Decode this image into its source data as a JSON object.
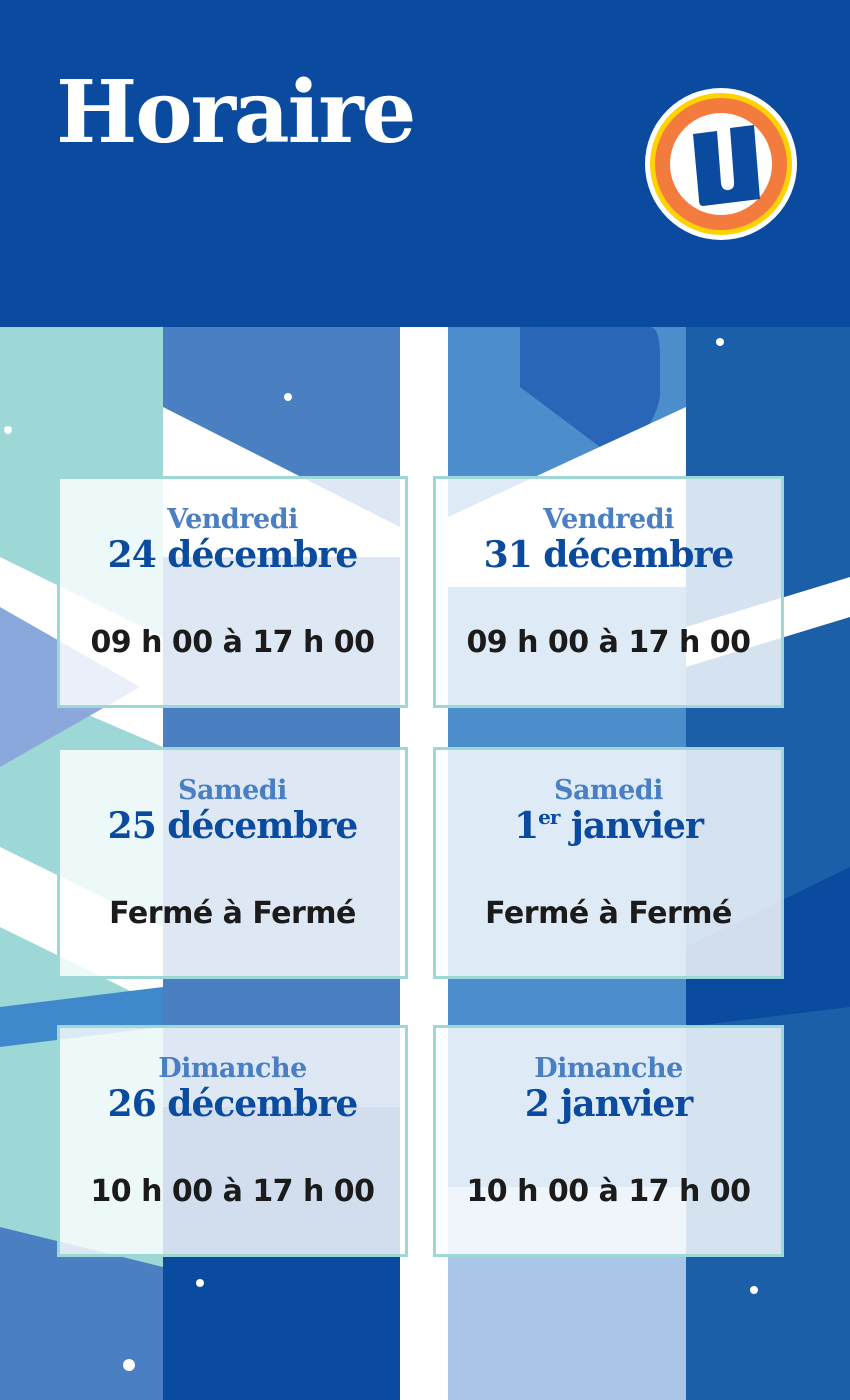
{
  "header": {
    "title": "Horaire",
    "logo": "U"
  },
  "colors": {
    "brand_blue": "#0a4ba0",
    "day_blue": "#4a7fc4",
    "card_border": "#9dd7d6",
    "logo_orange": "#f47b3e",
    "logo_yellow": "#ffd200"
  },
  "schedule": [
    {
      "day": "Vendredi",
      "date": "24 décembre",
      "date_sup": "",
      "hours": "09 h 00 à 17 h 00"
    },
    {
      "day": "Vendredi",
      "date": "31 décembre",
      "date_sup": "",
      "hours": "09 h 00 à 17 h 00"
    },
    {
      "day": "Samedi",
      "date": "25 décembre",
      "date_sup": "",
      "hours": "Fermé à Fermé"
    },
    {
      "day": "Samedi",
      "date_num": "1",
      "date_sup": "er",
      "date": " janvier",
      "hours": "Fermé à Fermé"
    },
    {
      "day": "Dimanche",
      "date": "26 décembre",
      "date_sup": "",
      "hours": "10 h 00 à 17 h 00"
    },
    {
      "day": "Dimanche",
      "date": "2 janvier",
      "date_sup": "",
      "hours": "10 h 00 à 17 h 00"
    }
  ]
}
